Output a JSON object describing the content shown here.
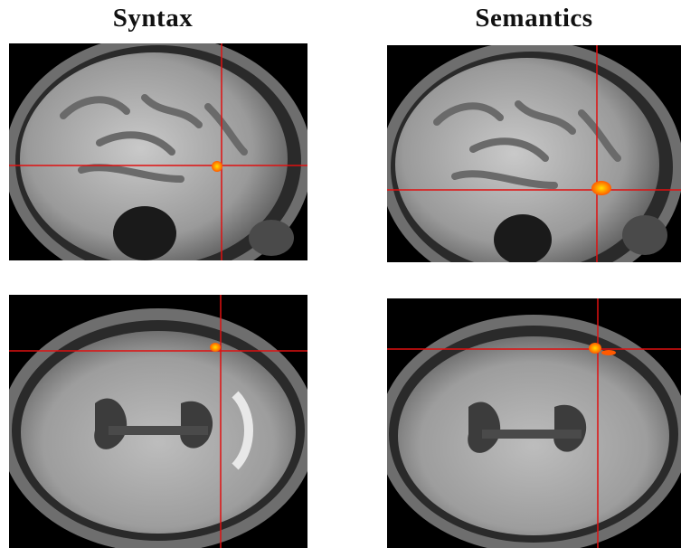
{
  "columns": {
    "left_title": "Syntax",
    "right_title": "Semantics"
  },
  "panels": [
    {
      "id": "sagittal-syntax",
      "view": "sagittal",
      "condition": "Syntax"
    },
    {
      "id": "sagittal-semantics",
      "view": "sagittal",
      "condition": "Semantics"
    },
    {
      "id": "axial-syntax",
      "view": "axial",
      "condition": "Syntax"
    },
    {
      "id": "axial-semantics",
      "view": "axial",
      "condition": "Semantics"
    }
  ],
  "colors": {
    "crosshair": "#e01010",
    "activation_core": "#ffe000",
    "activation_edge": "#ff5a00",
    "background": "#000000"
  }
}
